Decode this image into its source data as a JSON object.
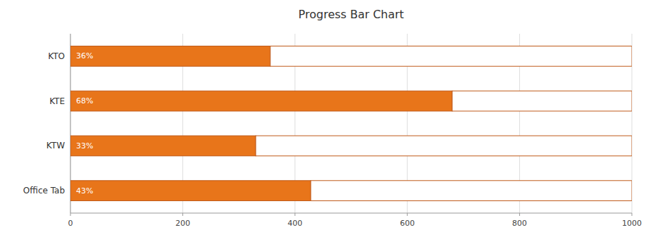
{
  "chart_data": {
    "type": "bar",
    "title": "Progress Bar Chart",
    "orientation": "horizontal",
    "stacked": true,
    "categories": [
      "Office Tab",
      "KTW",
      "KTE",
      "KTO"
    ],
    "series": [
      {
        "color": "#E8751A",
        "values": [
          428,
          330,
          680,
          356
        ]
      },
      {
        "color": "#FFFFFF",
        "values": [
          572,
          670,
          320,
          644
        ]
      }
    ],
    "annotations": [
      "43%",
      "33%",
      "68%",
      "36%"
    ],
    "xlim": [
      0,
      1000
    ],
    "xticks": [
      0,
      200,
      400,
      600,
      800,
      1000
    ],
    "grid": true
  }
}
